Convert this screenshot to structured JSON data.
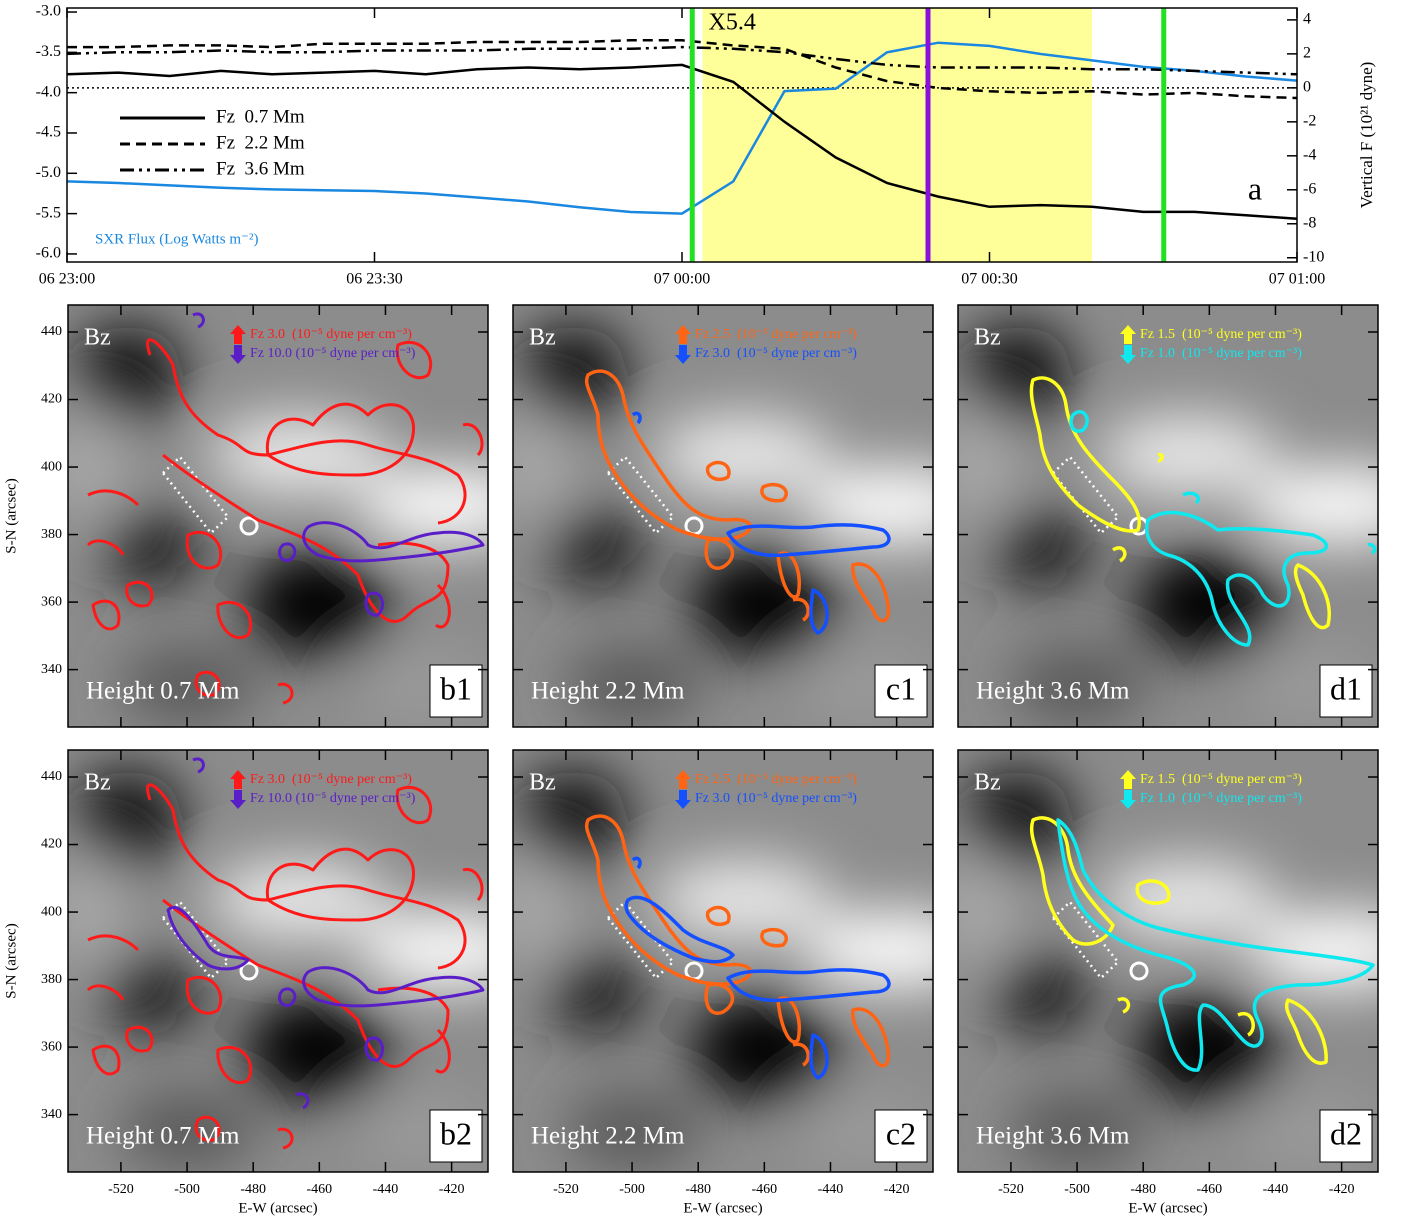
{
  "chart_data": [
    {
      "type": "line",
      "x": [
        "06 23:00",
        "06 23:05",
        "06 23:10",
        "06 23:15",
        "06 23:20",
        "06 23:25",
        "06 23:30",
        "06 23:35",
        "06 23:40",
        "06 23:45",
        "06 23:50",
        "06 23:55",
        "07 00:00",
        "07 00:05",
        "07 00:10",
        "07 00:15",
        "07 00:20",
        "07 00:25",
        "07 00:30",
        "07 00:35",
        "07 00:40",
        "07 00:45",
        "07 00:50",
        "07 00:55",
        "07 01:00"
      ],
      "xlim": [
        "06 23:00",
        "07 01:00"
      ],
      "xticks": [
        "06 23:00",
        "06 23:30",
        "07 00:00",
        "07 00:30",
        "07 01:00"
      ],
      "ylim": [
        -6.1,
        -2.95
      ],
      "yticks": [
        {
          "value": -6,
          "label": "-6.0"
        },
        {
          "value": -5.5,
          "label": "-5.5"
        },
        {
          "value": -5,
          "label": "-5.0"
        },
        {
          "value": -4.5,
          "label": "-4.5"
        },
        {
          "value": -4,
          "label": "-4.0"
        },
        {
          "value": -3.5,
          "label": "-3.5"
        },
        {
          "value": -3,
          "label": "-3.0"
        }
      ],
      "y2lim": [
        -10.25,
        4.7
      ],
      "y2ticks": [
        -10,
        -8,
        -6,
        -4,
        -2,
        0,
        2,
        4
      ],
      "y2label": "Vertical F (10²¹ dyne)",
      "zero_line": {
        "axis": "y2",
        "value": 0
      },
      "span": {
        "x": [
          "07 00:02",
          "07 00:40"
        ],
        "color": "#ffff99"
      },
      "vlines": [
        {
          "x": "07 00:01",
          "color": "#22e022"
        },
        {
          "x": "07 00:24",
          "color": "#8a10e0"
        },
        {
          "x": "07 00:47",
          "color": "#22e022"
        }
      ],
      "flare_label": "X5.4",
      "panel_label": "a",
      "series": [
        {
          "name": "SXR Flux (Log Watts m⁻²)",
          "color": "#1a88e0",
          "dash": "solid",
          "values": [
            -5.1,
            -5.12,
            -5.15,
            -5.18,
            -5.2,
            -5.21,
            -5.22,
            -5.25,
            -5.3,
            -5.35,
            -5.42,
            -5.48,
            -5.5,
            -5.1,
            -3.98,
            -3.95,
            -3.5,
            -3.38,
            -3.42,
            -3.52,
            -3.6,
            -3.68,
            -3.73,
            -3.8,
            -3.85
          ]
        },
        {
          "name": "Fz  0.7 Mm",
          "color": "#000000",
          "dash": "solid",
          "axis": "y2",
          "values": [
            0.8,
            0.9,
            0.7,
            1.0,
            0.8,
            0.9,
            1.0,
            0.8,
            1.1,
            1.2,
            1.1,
            1.2,
            1.35,
            0.35,
            -2.0,
            -4.1,
            -5.6,
            -6.4,
            -7.0,
            -6.9,
            -7.0,
            -7.3,
            -7.3,
            -7.5,
            -7.7
          ]
        },
        {
          "name": "Fz  2.2 Mm",
          "color": "#000000",
          "dash": "dashed",
          "axis": "y2",
          "values": [
            2.4,
            2.4,
            2.5,
            2.5,
            2.4,
            2.6,
            2.6,
            2.6,
            2.7,
            2.7,
            2.7,
            2.8,
            2.8,
            2.5,
            2.3,
            1.2,
            0.4,
            0.0,
            -0.2,
            -0.3,
            -0.2,
            -0.4,
            -0.3,
            -0.5,
            -0.6
          ]
        },
        {
          "name": "Fz  3.6 Mm",
          "color": "#000000",
          "dash": "dashdotdot",
          "axis": "y2",
          "values": [
            2.0,
            2.1,
            2.1,
            2.2,
            2.1,
            2.1,
            2.2,
            2.2,
            2.2,
            2.3,
            2.3,
            2.3,
            2.4,
            2.3,
            2.1,
            1.7,
            1.35,
            1.2,
            1.2,
            1.2,
            1.1,
            1.1,
            1.0,
            0.9,
            0.8
          ]
        }
      ]
    },
    {
      "type": "image",
      "panel_label": "b1",
      "image_label": "Bz",
      "height_label": "Height 0.7 Mm",
      "xlim": [
        -536,
        -409
      ],
      "ylim": [
        323,
        448
      ],
      "xticks": [
        -520,
        -500,
        -480,
        -460,
        -440,
        -420
      ],
      "yticks": [
        340,
        360,
        380,
        400,
        420,
        440
      ],
      "xtick_labels": false,
      "ytick_labels": true,
      "ylabel": "S-N (arcsec)",
      "legend": [
        {
          "name": "Fz 3.0  (10⁻⁵ dyne per cm⁻³)",
          "color": "#ff1a1a",
          "direction": "up"
        },
        {
          "name": "Fz 10.0 (10⁻⁵ dyne per cm⁻³)",
          "color": "#5a1ec8",
          "direction": "down"
        }
      ]
    },
    {
      "type": "image",
      "panel_label": "c1",
      "image_label": "Bz",
      "height_label": "Height 2.2 Mm",
      "xlim": [
        -536,
        -409
      ],
      "ylim": [
        323,
        448
      ],
      "xticks": [
        -520,
        -500,
        -480,
        -460,
        -440,
        -420
      ],
      "yticks": [
        340,
        360,
        380,
        400,
        420,
        440
      ],
      "xtick_labels": false,
      "ytick_labels": false,
      "legend": [
        {
          "name": "Fz 2.5  (10⁻⁵ dyne per cm⁻³)",
          "color": "#ff6414",
          "direction": "up"
        },
        {
          "name": "Fz 3.0  (10⁻⁵ dyne per cm⁻³)",
          "color": "#1450ff",
          "direction": "down"
        }
      ]
    },
    {
      "type": "image",
      "panel_label": "d1",
      "image_label": "Bz",
      "height_label": "Height 3.6 Mm",
      "xlim": [
        -536,
        -409
      ],
      "ylim": [
        323,
        448
      ],
      "xticks": [
        -520,
        -500,
        -480,
        -460,
        -440,
        -420
      ],
      "yticks": [
        340,
        360,
        380,
        400,
        420,
        440
      ],
      "xtick_labels": false,
      "ytick_labels": false,
      "legend": [
        {
          "name": "Fz 1.5  (10⁻⁵ dyne per cm⁻³)",
          "color": "#ffff20",
          "direction": "up"
        },
        {
          "name": "Fz 1.0  (10⁻⁵ dyne per cm⁻³)",
          "color": "#10e8f0",
          "direction": "down"
        }
      ]
    },
    {
      "type": "image",
      "panel_label": "b2",
      "image_label": "Bz",
      "height_label": "Height 0.7 Mm",
      "xlim": [
        -536,
        -409
      ],
      "ylim": [
        323,
        448
      ],
      "xticks": [
        -520,
        -500,
        -480,
        -460,
        -440,
        -420
      ],
      "yticks": [
        340,
        360,
        380,
        400,
        420,
        440
      ],
      "xtick_labels": true,
      "ytick_labels": true,
      "xlabel": "E-W (arcsec)",
      "ylabel": "S-N (arcsec)",
      "legend": [
        {
          "name": "Fz 3.0  (10⁻⁵ dyne per cm⁻³)",
          "color": "#ff1a1a",
          "direction": "up"
        },
        {
          "name": "Fz 10.0 (10⁻⁵ dyne per cm⁻³)",
          "color": "#5a1ec8",
          "direction": "down"
        }
      ]
    },
    {
      "type": "image",
      "panel_label": "c2",
      "image_label": "Bz",
      "height_label": "Height 2.2 Mm",
      "xlim": [
        -536,
        -409
      ],
      "ylim": [
        323,
        448
      ],
      "xticks": [
        -520,
        -500,
        -480,
        -460,
        -440,
        -420
      ],
      "yticks": [
        340,
        360,
        380,
        400,
        420,
        440
      ],
      "xtick_labels": true,
      "ytick_labels": false,
      "xlabel": "E-W (arcsec)",
      "legend": [
        {
          "name": "Fz 2.5  (10⁻⁵ dyne per cm⁻³)",
          "color": "#ff6414",
          "direction": "up"
        },
        {
          "name": "Fz 3.0  (10⁻⁵ dyne per cm⁻³)",
          "color": "#1450ff",
          "direction": "down"
        }
      ]
    },
    {
      "type": "image",
      "panel_label": "d2",
      "image_label": "Bz",
      "height_label": "Height 3.6 Mm",
      "xlim": [
        -536,
        -409
      ],
      "ylim": [
        323,
        448
      ],
      "xticks": [
        -520,
        -500,
        -480,
        -460,
        -440,
        -420
      ],
      "yticks": [
        340,
        360,
        380,
        400,
        420,
        440
      ],
      "xtick_labels": true,
      "ytick_labels": false,
      "xlabel": "E-W (arcsec)",
      "legend": [
        {
          "name": "Fz 1.5  (10⁻⁵ dyne per cm⁻³)",
          "color": "#ffff20",
          "direction": "up"
        },
        {
          "name": "Fz 1.0  (10⁻⁵ dyne per cm⁻³)",
          "color": "#10e8f0",
          "direction": "down"
        }
      ]
    }
  ]
}
